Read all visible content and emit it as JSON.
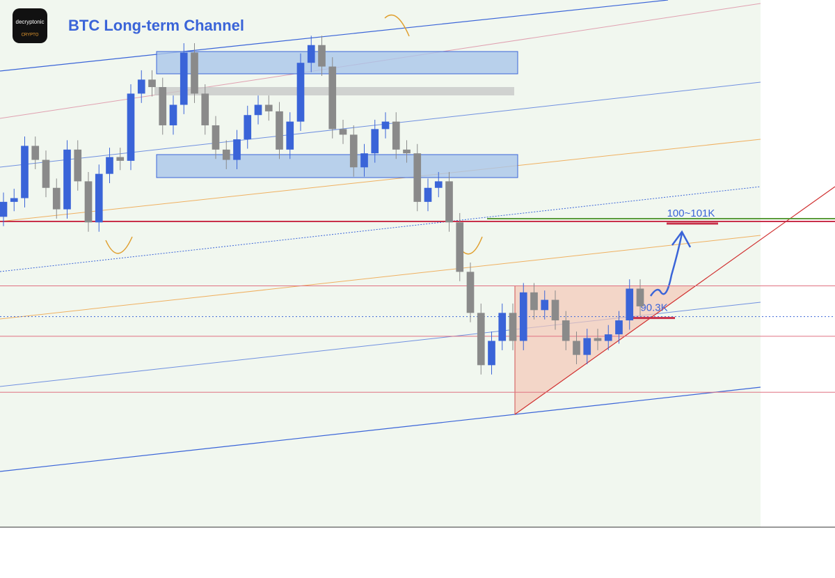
{
  "chart_data": {
    "type": "candlestick",
    "title": "BTC Long-term Channel",
    "logo": {
      "name": "decryptonic",
      "sub": "CRYPTO"
    },
    "open": [
      101.0,
      102.6,
      103.0,
      108.6,
      107.1,
      104.1,
      101.8,
      108.2,
      104.8,
      100.4,
      105.6,
      107.4,
      107.0,
      114.2,
      115.7,
      114.9,
      110.8,
      113.0,
      118.6,
      114.2,
      110.8,
      108.2,
      107.1,
      109.3,
      111.9,
      113.0,
      112.3,
      108.2,
      111.2,
      117.5,
      119.4,
      117.1,
      110.4,
      109.8,
      106.3,
      107.8,
      110.4,
      111.2,
      108.2,
      107.8,
      102.6,
      104.1,
      104.8,
      100.4,
      95.1,
      90.7,
      85.1,
      87.7,
      90.7,
      87.7,
      92.9,
      91.0,
      92.1,
      89.9,
      87.7,
      86.2,
      88.0,
      87.7,
      88.4,
      89.9,
      93.3
    ],
    "high": [
      103.6,
      104.0,
      109.6,
      109.6,
      108.1,
      105.1,
      109.2,
      109.2,
      105.8,
      106.6,
      108.4,
      108.4,
      115.2,
      116.7,
      116.7,
      115.9,
      114.0,
      119.6,
      119.6,
      115.2,
      111.8,
      109.2,
      110.3,
      112.9,
      114.0,
      114.0,
      113.3,
      112.2,
      118.5,
      120.4,
      120.4,
      118.1,
      111.4,
      110.8,
      108.8,
      111.4,
      112.2,
      112.2,
      109.2,
      108.8,
      105.1,
      105.8,
      105.8,
      101.4,
      96.1,
      91.7,
      88.7,
      91.7,
      91.7,
      93.9,
      93.9,
      93.1,
      93.1,
      90.9,
      88.7,
      89.0,
      89.0,
      89.4,
      90.9,
      94.3,
      94.3
    ],
    "low": [
      100.0,
      101.6,
      102.0,
      106.1,
      103.1,
      100.8,
      100.8,
      103.8,
      99.4,
      99.4,
      104.6,
      106.0,
      106.0,
      113.2,
      113.9,
      109.8,
      109.8,
      112.0,
      113.2,
      109.8,
      107.2,
      106.1,
      106.1,
      108.3,
      110.9,
      111.3,
      107.2,
      107.2,
      110.2,
      116.5,
      116.1,
      109.4,
      108.8,
      105.3,
      105.3,
      106.8,
      109.4,
      107.2,
      106.8,
      101.6,
      101.6,
      103.1,
      99.4,
      94.1,
      89.7,
      84.1,
      84.1,
      86.7,
      86.7,
      86.7,
      90.0,
      90.0,
      88.9,
      86.7,
      85.2,
      85.2,
      86.7,
      86.7,
      87.4,
      88.9,
      90.4
    ],
    "close": [
      102.6,
      103.0,
      108.6,
      107.1,
      104.1,
      101.8,
      108.2,
      104.8,
      100.4,
      105.6,
      107.4,
      107.0,
      114.2,
      115.7,
      114.9,
      110.8,
      113.0,
      118.6,
      114.2,
      110.8,
      108.2,
      107.1,
      109.3,
      111.9,
      113.0,
      112.3,
      108.2,
      111.2,
      117.5,
      119.4,
      117.1,
      110.4,
      109.8,
      106.3,
      107.8,
      110.4,
      111.2,
      108.2,
      107.8,
      102.6,
      104.1,
      104.8,
      100.4,
      95.1,
      90.7,
      85.1,
      87.7,
      90.7,
      87.7,
      92.9,
      91.0,
      92.1,
      89.9,
      87.7,
      86.2,
      88.0,
      87.7,
      88.4,
      89.9,
      93.3,
      91.4
    ],
    "up_color": "#3a64d8",
    "down_color": "#8a8a8a",
    "levels": [
      {
        "value": 100.5,
        "color": "#c8304a"
      },
      {
        "value": 93.6,
        "color": "#e07080"
      },
      {
        "value": 88.2,
        "color": "#e07080"
      },
      {
        "value": 82.2,
        "color": "#e07080"
      }
    ],
    "target": {
      "label": "100~101K",
      "value": 100.8,
      "color": "#5a9a3a"
    },
    "support": {
      "label": "90.3K",
      "value": 90.3,
      "color": "#3a64d8"
    }
  }
}
